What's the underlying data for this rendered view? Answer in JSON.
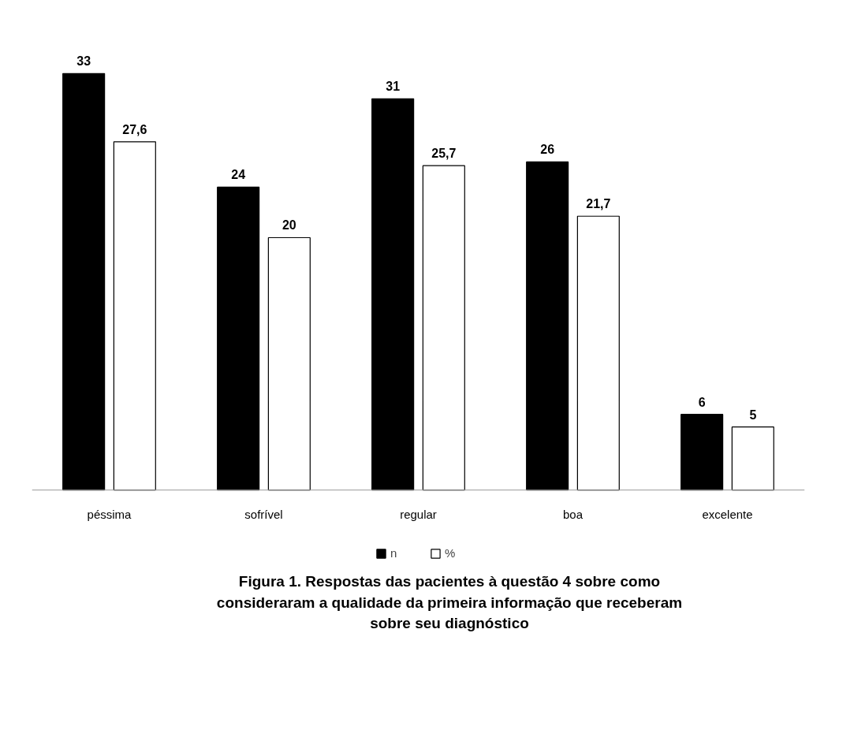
{
  "chart_data": {
    "type": "bar",
    "title": "Figura 1. Respostas das pacientes à questão 4 sobre como consideraram a qualidade da primeira informação que receberam sobre seu diagnóstico",
    "categories": [
      "péssima",
      "sofrível",
      "regular",
      "boa",
      "excelente"
    ],
    "series": [
      {
        "name": "n",
        "color": "#000000",
        "values": [
          33,
          24,
          31,
          26,
          6
        ]
      },
      {
        "name": "%",
        "color": "#ffffff",
        "values": [
          27.6,
          20,
          25.7,
          21.7,
          5
        ],
        "value_labels": [
          "27,6",
          "20",
          "25,7",
          "21,7",
          "5"
        ]
      }
    ],
    "data_labels": true,
    "grid": false,
    "legend": "bottom"
  }
}
